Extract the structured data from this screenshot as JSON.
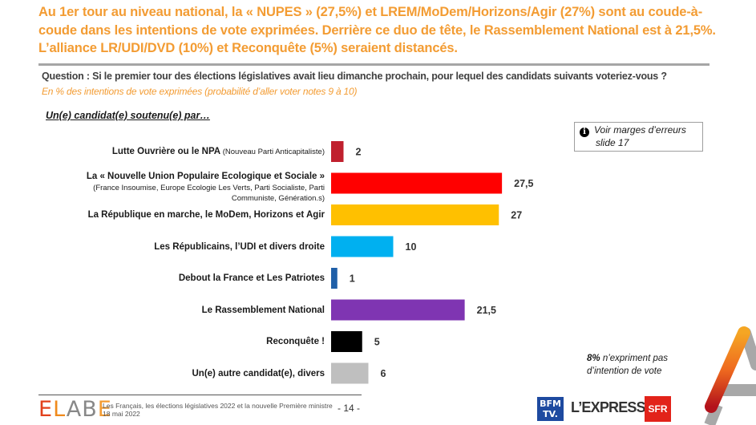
{
  "headline": {
    "line1": "Au 1er tour au niveau national, la « NUPES » (27,5%) et LREM/MoDem/Horizons/Agir (27%) sont au coude-à-",
    "line2": "coude dans les intentions de vote exprimées. Derrière ce duo de tête, le Rassemblement National est à 21,5%.",
    "line3": "L’alliance LR/UDI/DVD (10%) et Reconquête (5%) seraient distancés."
  },
  "question": {
    "text": "Question : Si le premier tour des élections législatives avait lieu dimanche prochain, pour lequel des candidats suivants voteriez-vous ?",
    "subtitle": "En % des intentions de vote exprimées (probabilité d’aller voter notes 9 à 10)"
  },
  "section_title": "Un(e) candidat(e) soutenu(e) par…",
  "note": {
    "icon": "info-icon",
    "line1": "Voir marges d’erreurs",
    "line2": "slide 17"
  },
  "abstention_note": {
    "bold": "8%",
    "rest1": " n’expriment pas",
    "line2": "d’intention de vote"
  },
  "chart_data": {
    "type": "bar",
    "orientation": "horizontal",
    "title": "Un(e) candidat(e) soutenu(e) par…",
    "xlabel": "",
    "ylabel": "",
    "xlim": [
      0,
      30
    ],
    "grid": false,
    "unit": "%",
    "categories": [
      "Lutte Ouvrière ou le NPA",
      "La « Nouvelle Union Populaire Ecologique et Sociale »",
      "La République en marche, le MoDem, Horizons et Agir",
      "Les Républicains, l’UDI et divers droite",
      "Debout la France et Les Patriotes",
      "Le Rassemblement National",
      "Reconquête !",
      "Un(e) autre candidat(e), divers"
    ],
    "category_subtitles": [
      "(Nouveau Parti Anticapitaliste)",
      "(France Insoumise, Europe Ecologie Les Verts, Parti Socialiste, Parti|Communiste, Génération.s)",
      "",
      "",
      "",
      "",
      "",
      ""
    ],
    "values": [
      2,
      27.5,
      27,
      10,
      1,
      21.5,
      5,
      6
    ],
    "value_labels": [
      "2",
      "27,5",
      "27",
      "10",
      "1",
      "21,5",
      "5",
      "6"
    ],
    "colors": [
      "#c0202e",
      "#ff0000",
      "#ffc000",
      "#00b0f0",
      "#1f5fa8",
      "#7f35b2",
      "#000000",
      "#bfbfbf"
    ]
  },
  "footer": {
    "brand": [
      "E",
      "L",
      "A",
      "B",
      "E"
    ],
    "line1": "Les Français, les élections législatives 2022 et la nouvelle Première ministre",
    "line2": "18 mai 2022",
    "page": "- 14 -",
    "partners": {
      "bfm_line1": "BFM",
      "bfm_line2": "TV.",
      "express": "L’EXPRESS",
      "sfr": "SFR"
    }
  }
}
